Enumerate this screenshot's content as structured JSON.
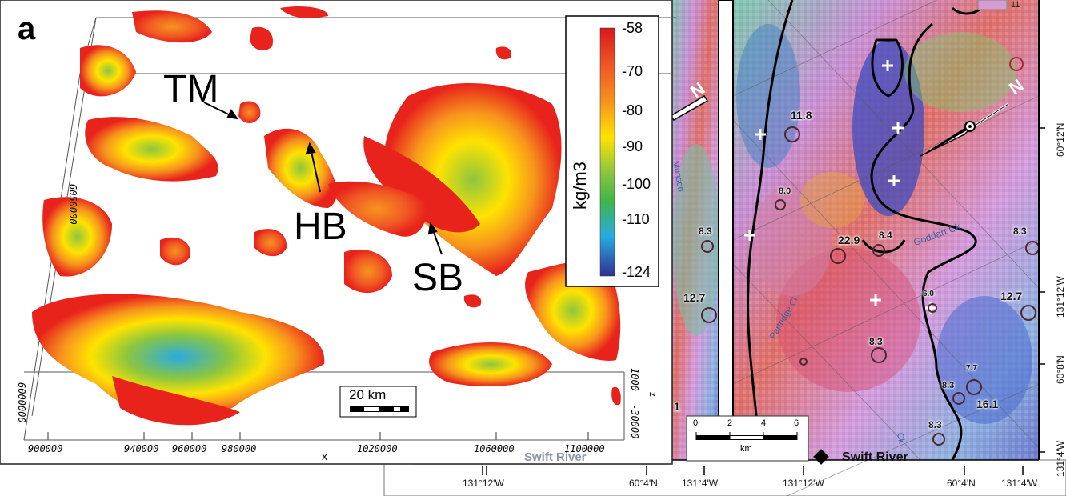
{
  "panel_a": {
    "label": "a",
    "features": [
      "TM",
      "HB",
      "SB"
    ],
    "x_ticks": [
      "900000",
      "940000",
      "960000",
      "980000",
      "1020000",
      "1060000",
      "1100000"
    ],
    "x_axis_label": "x",
    "y_ticks": [
      "6000000",
      "6050000"
    ],
    "z_ticks": [
      "1000",
      "-30000"
    ],
    "z_axis_label": "z",
    "scale_bar": "20 km",
    "colorbar": {
      "ticks": [
        "-58",
        "-70",
        "-80",
        "-90",
        "-100",
        "-110",
        "-124"
      ],
      "unit": "kg/m3",
      "colors": [
        "#d7191c",
        "#f05a24",
        "#f7941d",
        "#ffe300",
        "#8cc63f",
        "#3fb54a",
        "#29abe2",
        "#2e3192"
      ]
    }
  },
  "panel_b": {
    "legend_value": "11",
    "values": [
      "11.8",
      "8.0",
      "8.3",
      "22.9",
      "8.4",
      "8.3",
      "12.7",
      "12.7",
      "6.0",
      "8.3",
      "7.7",
      "8.3",
      "16.1",
      "8.3",
      "1"
    ],
    "lat_ticks": [
      "60°12'N",
      "131°12'W",
      "60°8'N",
      "131°4'W"
    ],
    "bottom_ticks": [
      "131°12'W",
      "60°4'N",
      "131°4'W",
      "131°12'W",
      "60°4'N",
      "131°4'W"
    ],
    "scale": {
      "ticks": [
        "0",
        "2",
        "4",
        "6"
      ],
      "unit": "km"
    },
    "place": "Swift River",
    "place_faded": "Swift River",
    "north_symbol": "N",
    "creek_labels": [
      "Munson",
      "Goddart Ck",
      "Partridge Ck",
      "Ck"
    ]
  }
}
